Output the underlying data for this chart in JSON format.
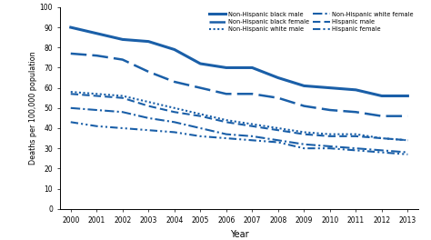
{
  "years": [
    2000,
    2001,
    2002,
    2003,
    2004,
    2005,
    2006,
    2007,
    2008,
    2009,
    2010,
    2011,
    2012,
    2013
  ],
  "nh_black_male": [
    90,
    87,
    84,
    83,
    79,
    72,
    70,
    70,
    65,
    61,
    60,
    59,
    56,
    56
  ],
  "nh_black_female": [
    77,
    76,
    74,
    68,
    63,
    60,
    57,
    57,
    55,
    51,
    49,
    48,
    46,
    46
  ],
  "nh_white_male": [
    58,
    57,
    56,
    53,
    50,
    47,
    44,
    42,
    40,
    38,
    37,
    37,
    35,
    34
  ],
  "nh_white_female": [
    50,
    49,
    48,
    45,
    43,
    40,
    37,
    36,
    34,
    32,
    31,
    30,
    29,
    28
  ],
  "hispanic_male": [
    57,
    56,
    55,
    51,
    48,
    46,
    43,
    41,
    39,
    37,
    36,
    36,
    35,
    34
  ],
  "hispanic_female": [
    43,
    41,
    40,
    39,
    38,
    36,
    35,
    34,
    33,
    30,
    30,
    29,
    28,
    27
  ],
  "color": "#1a5fa8",
  "ylim": [
    0,
    100
  ],
  "yticks": [
    0,
    10,
    20,
    30,
    40,
    50,
    60,
    70,
    80,
    90,
    100
  ],
  "xlabel": "Year",
  "ylabel": "Deaths per 100,000 population",
  "legend_col1": [
    "Non-Hispanic black male",
    "Non-Hispanic white male",
    "Hispanic male"
  ],
  "legend_col2": [
    "Non-Hispanic black female",
    "Non-Hispanic white female",
    "Hispanic female"
  ]
}
